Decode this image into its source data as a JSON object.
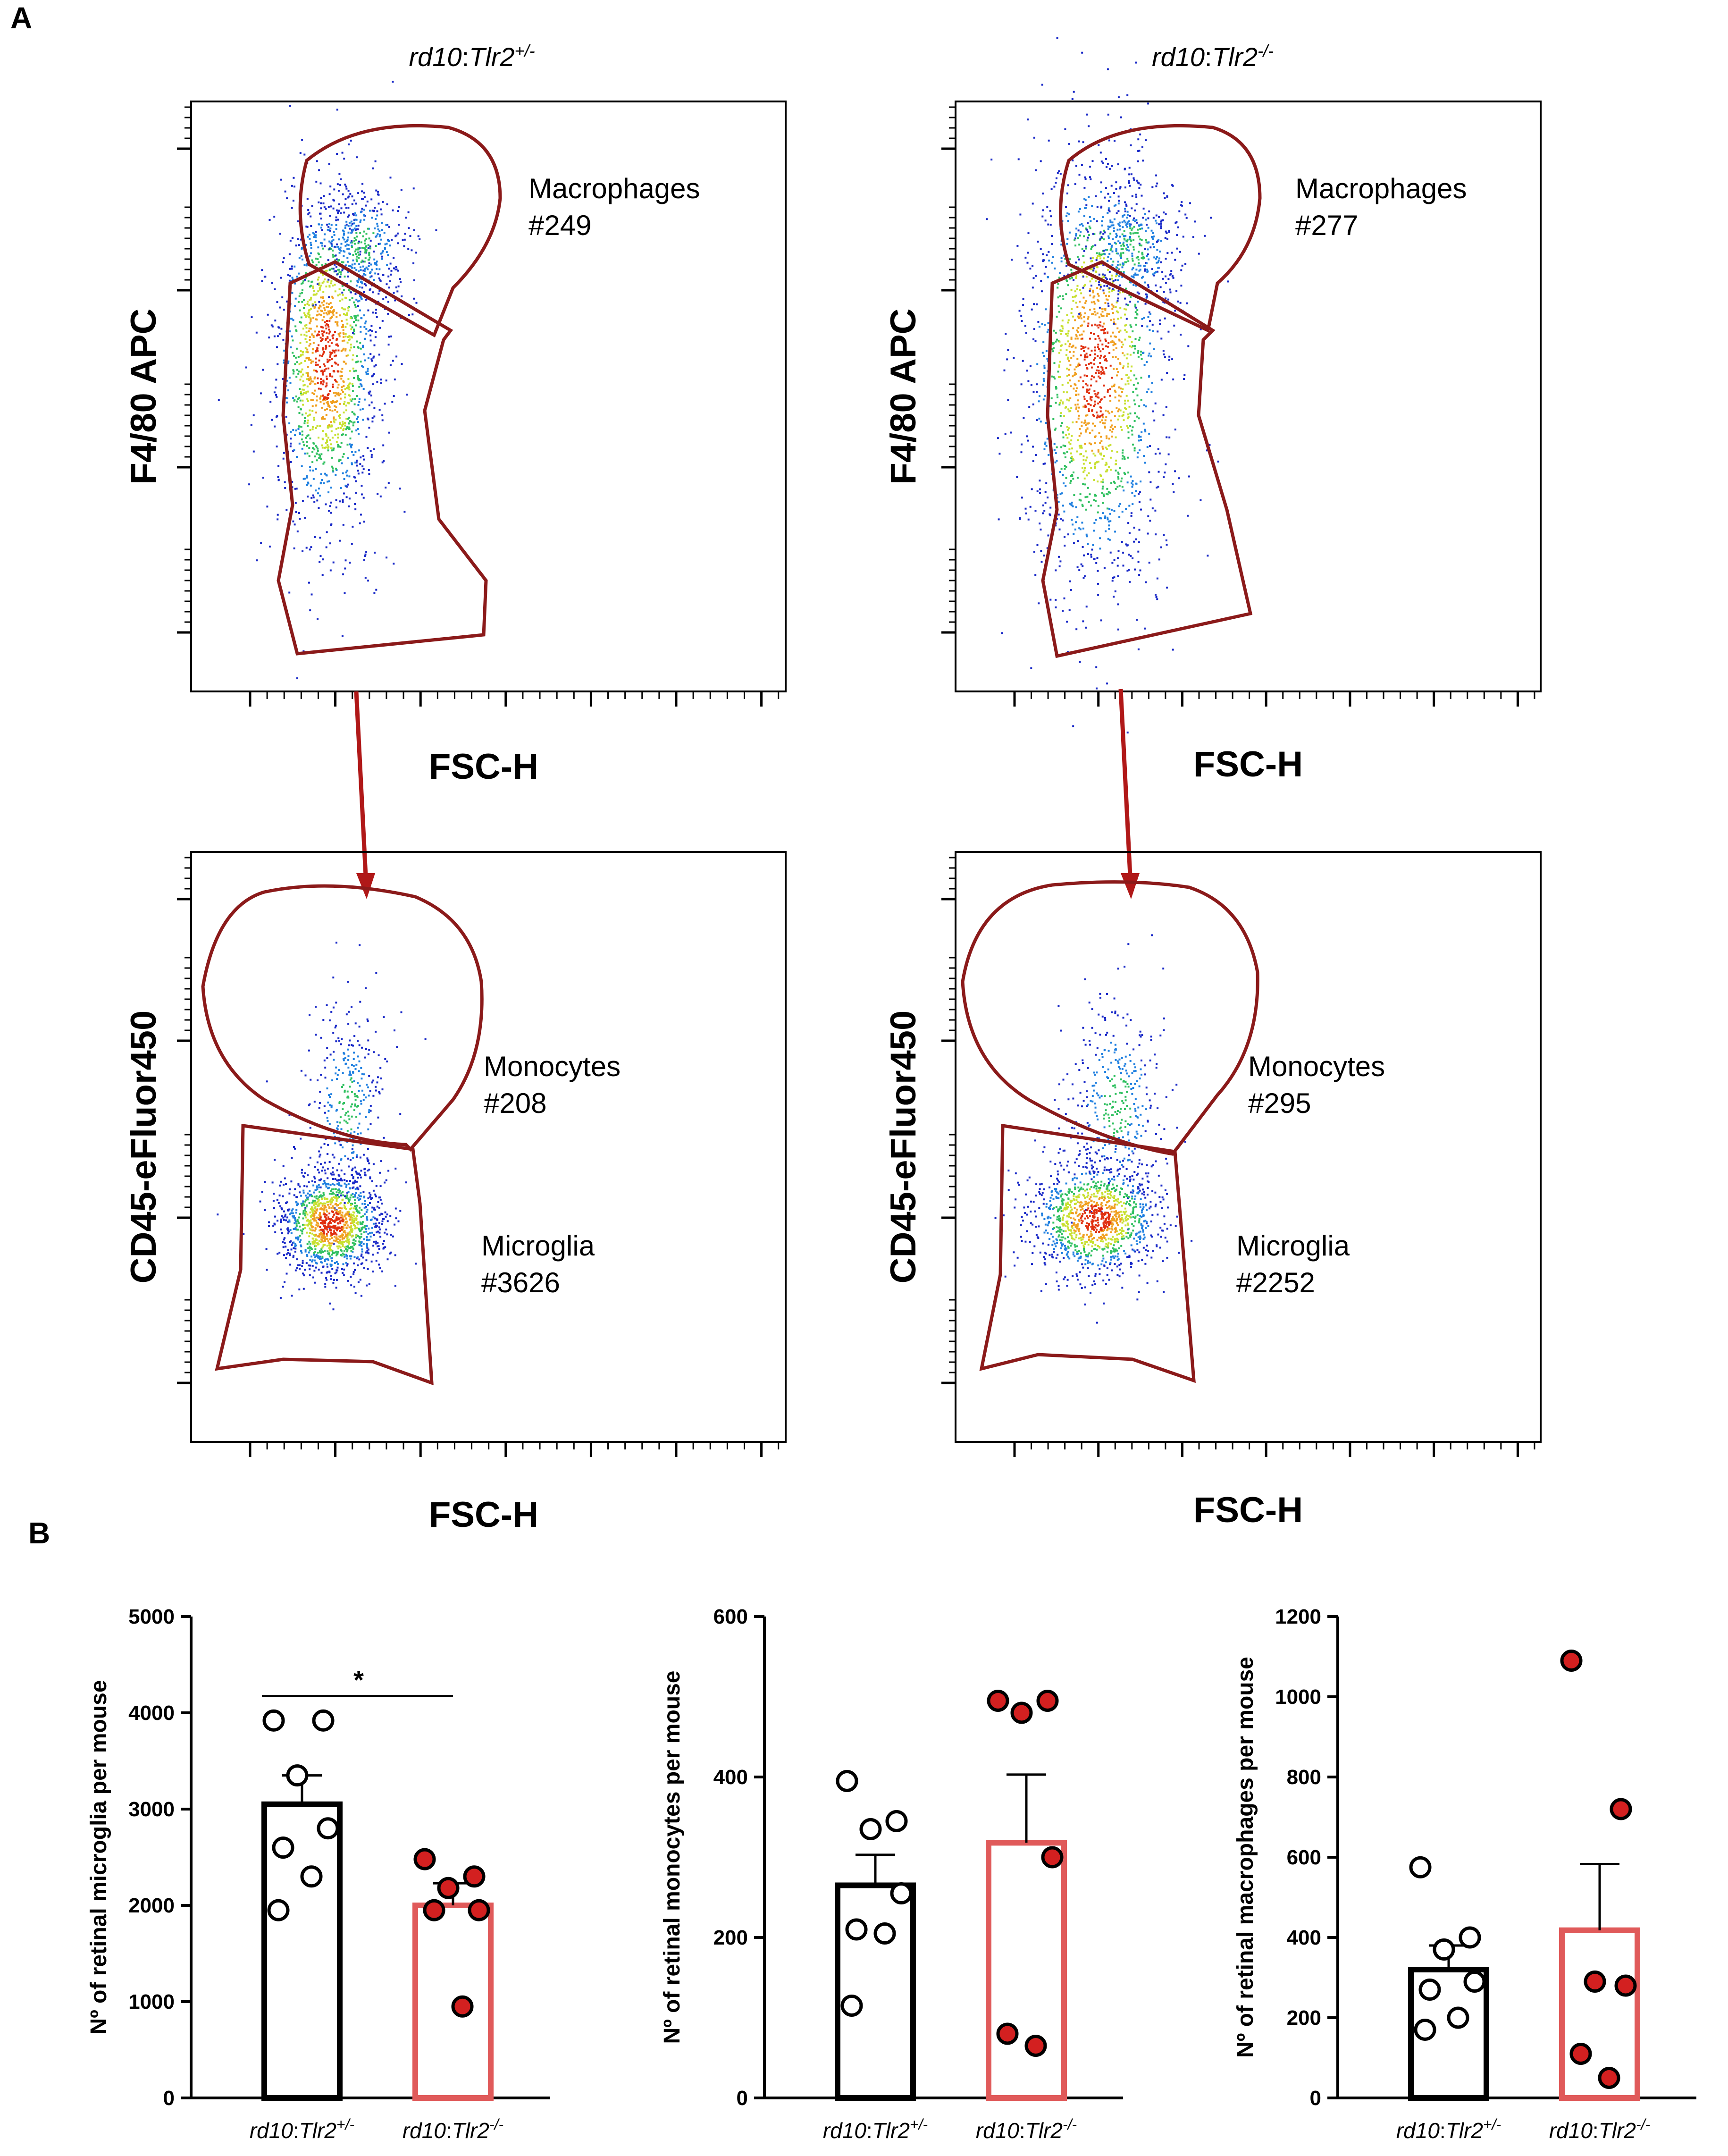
{
  "panel_a": {
    "letter": "A",
    "columns": [
      {
        "genotype": "rd10:Tlr2+/-",
        "genotype_parts": [
          "rd10",
          ":",
          "Tlr2",
          "+/-"
        ],
        "top_plot": {
          "ylabel": "F4/80 APC",
          "xlabel": "FSC-H",
          "gates": [
            {
              "name": "Macrophages",
              "count": "#249"
            }
          ]
        },
        "bottom_plot": {
          "ylabel": "CD45-eFluor450",
          "xlabel": "FSC-H",
          "gates": [
            {
              "name": "Monocytes",
              "count": "#208"
            },
            {
              "name": "Microglia",
              "count": "#3626"
            }
          ]
        }
      },
      {
        "genotype": "rd10:Tlr2-/-",
        "genotype_parts": [
          "rd10",
          ":",
          "Tlr2",
          "-/-"
        ],
        "top_plot": {
          "ylabel": "F4/80 APC",
          "xlabel": "FSC-H",
          "gates": [
            {
              "name": "Macrophages",
              "count": "#277"
            }
          ]
        },
        "bottom_plot": {
          "ylabel": "CD45-eFluor450",
          "xlabel": "FSC-H",
          "gates": [
            {
              "name": "Monocytes",
              "count": "#295"
            },
            {
              "name": "Microglia",
              "count": "#2252"
            }
          ]
        }
      }
    ]
  },
  "panel_b": {
    "letter": "B"
  },
  "colors": {
    "gate": "#8b1a1a",
    "arrow": "#b01818",
    "ctrl_bar": "#000000",
    "ko_bar": "#e05a5a",
    "ko_point": "#d32020"
  },
  "chart_data": [
    {
      "type": "bar",
      "title": "",
      "ylabel": "Nº of retinal microglia per mouse",
      "xlabel": "",
      "ylim": [
        0,
        5000
      ],
      "yticks": [
        0,
        1000,
        2000,
        3000,
        4000,
        5000
      ],
      "categories": [
        "rd10:Tlr2+/-",
        "rd10:Tlr2-/-"
      ],
      "means": [
        3050,
        2000
      ],
      "sem": [
        300,
        230
      ],
      "points": [
        [
          3920,
          3920,
          3350,
          2800,
          2600,
          2300,
          1950
        ],
        [
          2480,
          2300,
          2180,
          1950,
          1950,
          950
        ]
      ],
      "significance": "*"
    },
    {
      "type": "bar",
      "title": "",
      "ylabel": "Nº of retinal monocytes per mouse",
      "xlabel": "",
      "ylim": [
        0,
        600
      ],
      "yticks": [
        0,
        200,
        400,
        600
      ],
      "categories": [
        "rd10:Tlr2+/-",
        "rd10:Tlr2-/-"
      ],
      "means": [
        265,
        318
      ],
      "sem": [
        38,
        85
      ],
      "points": [
        [
          395,
          345,
          335,
          255,
          210,
          205,
          115
        ],
        [
          495,
          495,
          480,
          300,
          80,
          65
        ]
      ]
    },
    {
      "type": "bar",
      "title": "",
      "ylabel": "Nº of retinal macrophages per mouse",
      "xlabel": "",
      "ylim": [
        0,
        1200
      ],
      "yticks": [
        0,
        200,
        400,
        600,
        800,
        1000,
        1200
      ],
      "categories": [
        "rd10:Tlr2+/-",
        "rd10:Tlr2-/-"
      ],
      "means": [
        320,
        418
      ],
      "sem": [
        60,
        165
      ],
      "points": [
        [
          575,
          400,
          370,
          290,
          270,
          200,
          170
        ],
        [
          1090,
          720,
          290,
          280,
          110,
          50
        ]
      ]
    }
  ]
}
